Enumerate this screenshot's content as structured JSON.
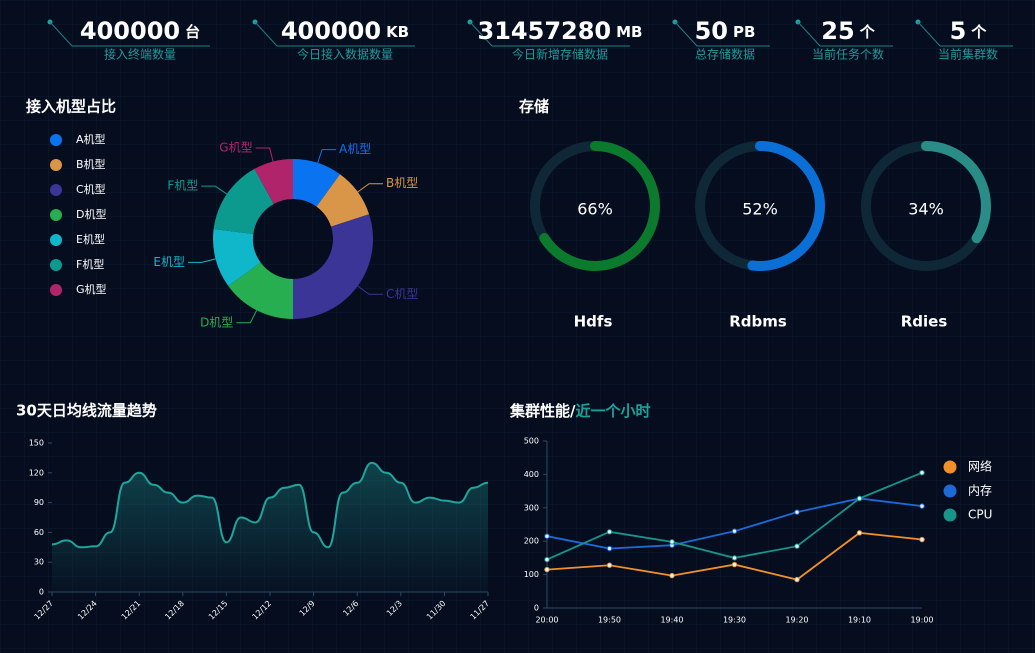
{
  "stats": [
    {
      "value": 400000,
      "unit": "台",
      "label": "接入终端数量"
    },
    {
      "value": 400000,
      "unit": "KB",
      "label": "今日接入数据数量"
    },
    {
      "value": 31457280,
      "unit": "MB",
      "label": "今日新增存储数据"
    },
    {
      "value": 50,
      "unit": "PB",
      "label": "总存储数据"
    },
    {
      "value": 25,
      "unit": "个",
      "label": "当前任务个数"
    },
    {
      "value": 5,
      "unit": "个",
      "label": "当前集群数"
    }
  ],
  "chart_data": [
    {
      "type": "donut",
      "title": "接入机型占比",
      "categories": [
        "A机型",
        "B机型",
        "C机型",
        "D机型",
        "E机型",
        "F机型",
        "G机型"
      ],
      "values": [
        10,
        10,
        30,
        15,
        12,
        15,
        8
      ],
      "colors": [
        "#0a74f0",
        "#d99548",
        "#3a3596",
        "#27ae50",
        "#10b6c9",
        "#0d9a8e",
        "#b0246c"
      ]
    },
    {
      "type": "gauge",
      "title": "存储",
      "categories": [
        "Hdfs",
        "Rdbms",
        "Rdies"
      ],
      "values": [
        66,
        52,
        34
      ],
      "value_labels": [
        "66%",
        "52%",
        "34%"
      ],
      "colors": [
        "#0b7a2c",
        "#0b6fd8",
        "#2a8c86"
      ],
      "ylim": [
        0,
        100
      ]
    },
    {
      "type": "area",
      "title": "30天日均线流量趋势",
      "categories": [
        "12/27",
        null,
        null,
        "12/24",
        null,
        null,
        "12/21",
        null,
        null,
        "12/18",
        null,
        null,
        "12/15",
        null,
        null,
        "12/12",
        null,
        null,
        "12/9",
        null,
        null,
        "12/6",
        null,
        null,
        "12/3",
        null,
        null,
        "11/30",
        null,
        null,
        "11/27"
      ],
      "values": [
        48,
        52,
        45,
        46,
        60,
        110,
        120,
        108,
        100,
        90,
        97,
        95,
        50,
        75,
        70,
        95,
        105,
        108,
        60,
        45,
        100,
        110,
        130,
        120,
        110,
        90,
        95,
        92,
        90,
        105,
        110
      ],
      "color": "#1fa59b",
      "ylim": [
        0,
        150
      ],
      "yticks": [
        0,
        30,
        60,
        90,
        120,
        150
      ]
    },
    {
      "type": "line",
      "title": "集群性能/",
      "subtitle": "近一个小时",
      "categories": [
        "20:00",
        "19:50",
        "19:40",
        "19:30",
        "19:20",
        "19:10",
        "19:00"
      ],
      "series": [
        {
          "name": "网络",
          "color": "#f0902a",
          "values": [
            115,
            128,
            97,
            130,
            85,
            225,
            205
          ]
        },
        {
          "name": "内存",
          "color": "#1b6ad6",
          "values": [
            215,
            178,
            188,
            230,
            287,
            328,
            305
          ]
        },
        {
          "name": "CPU",
          "color": "#17958c",
          "values": [
            145,
            228,
            198,
            150,
            185,
            328,
            405
          ]
        }
      ],
      "ylim": [
        0,
        500
      ],
      "yticks": [
        0,
        100,
        200,
        300,
        400,
        500
      ],
      "legend": "right"
    }
  ]
}
